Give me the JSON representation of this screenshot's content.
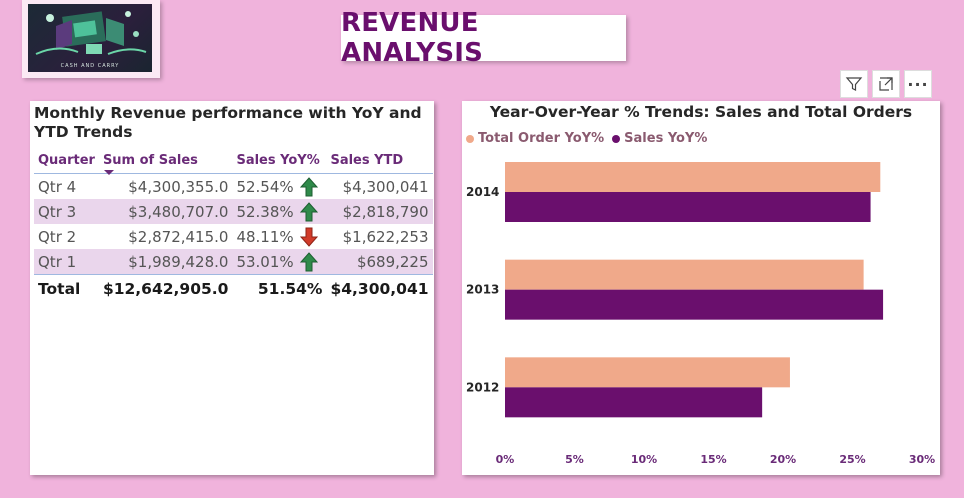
{
  "logo": {
    "text": "CASH AND CARRY"
  },
  "title": "REVENUE ANALYSIS",
  "toolbar": {
    "icons": [
      "filter-icon",
      "focus-mode-icon",
      "more-options-icon"
    ],
    "more_label": "···"
  },
  "colors": {
    "background": "#f0b3dc",
    "title": "#6a0f6d",
    "header": "#6a2b78",
    "order_bar": "#f0a98a",
    "sales_bar": "#6a0f6d",
    "arrow_up": "#2f8a4a",
    "arrow_down": "#d13b2a",
    "row_shade": "#ead6ec"
  },
  "table": {
    "title": "Monthly Revenue performance with YoY and YTD Trends",
    "headers": [
      "Quarter",
      "Sum of Sales",
      "Sales YoY%",
      "Sales YTD"
    ],
    "rows": [
      {
        "quarter": "Qtr 4",
        "sales": "$4,300,355.0",
        "yoy": "52.54%",
        "trend": "up",
        "ytd": "$4,300,041"
      },
      {
        "quarter": "Qtr 3",
        "sales": "$3,480,707.0",
        "yoy": "52.38%",
        "trend": "up",
        "ytd": "$2,818,790"
      },
      {
        "quarter": "Qtr 2",
        "sales": "$2,872,415.0",
        "yoy": "48.11%",
        "trend": "down",
        "ytd": "$1,622,253"
      },
      {
        "quarter": "Qtr 1",
        "sales": "$1,989,428.0",
        "yoy": "53.01%",
        "trend": "up",
        "ytd": "$689,225"
      }
    ],
    "total": {
      "label": "Total",
      "sales": "$12,642,905.0",
      "yoy": "51.54%",
      "ytd": "$4,300,041"
    }
  },
  "chart_data": {
    "type": "bar",
    "orientation": "horizontal",
    "title": "Year-Over-Year % Trends: Sales and Total Orders",
    "categories": [
      "2014",
      "2013",
      "2012"
    ],
    "series": [
      {
        "name": "Total Order YoY%",
        "values": [
          0.27,
          0.258,
          0.205
        ]
      },
      {
        "name": "Sales YoY%",
        "values": [
          0.263,
          0.272,
          0.185
        ]
      }
    ],
    "x_ticks": [
      "0%",
      "5%",
      "10%",
      "15%",
      "20%",
      "25%",
      "30%"
    ],
    "xlim": [
      0,
      0.3
    ],
    "legend_position": "top-left",
    "grid": false
  }
}
